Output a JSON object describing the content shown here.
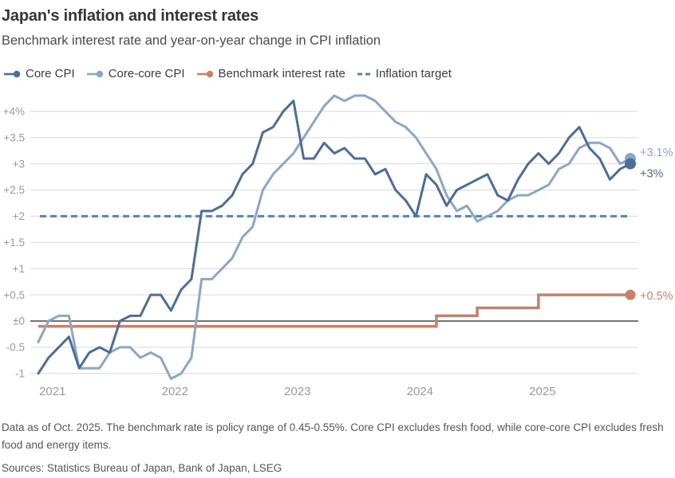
{
  "header": {
    "title": "Japan's inflation and interest rates",
    "subtitle": "Benchmark interest rate and year-on-year change in CPI inflation"
  },
  "legend": [
    {
      "id": "core",
      "label": "Core CPI",
      "marker": "line-dot"
    },
    {
      "id": "corecore",
      "label": "Core-core CPI",
      "marker": "line-dot"
    },
    {
      "id": "benchmark",
      "label": "Benchmark interest rate",
      "marker": "line-dot"
    },
    {
      "id": "target",
      "label": "Inflation target",
      "marker": "dashed"
    }
  ],
  "colors": {
    "core": "#4b6d9b",
    "corecore": "#8aa6c8",
    "benchmark": "#c8806b",
    "target": "#5b82b4",
    "grid": "#d9d9d9",
    "zero_line": "#5f5f5f",
    "axis_text": "#9a9a9a",
    "title_text": "#363636",
    "subtitle_text": "#4b4b4b",
    "legend_text": "#3c3c3c",
    "note_text": "#565656",
    "background": "#ffffff"
  },
  "chart_data": {
    "type": "line",
    "frequency": "monthly",
    "x_start": "2020-12",
    "x_end": "2025-10",
    "ylim": [
      -1.1,
      4.35
    ],
    "grid": "horizontal",
    "legend_position": "top",
    "unit": "%",
    "y_ticks": [
      {
        "label": "+4%",
        "value": 4
      },
      {
        "label": "+3.5",
        "value": 3.5
      },
      {
        "label": "+3",
        "value": 3
      },
      {
        "label": "+2.5",
        "value": 2.5
      },
      {
        "label": "+2",
        "value": 2
      },
      {
        "label": "+1.5",
        "value": 1.5
      },
      {
        "label": "+1",
        "value": 1
      },
      {
        "label": "+0.5",
        "value": 0.5
      },
      {
        "label": "±0",
        "value": 0
      },
      {
        "label": "-0.5",
        "value": -0.5
      },
      {
        "label": "-1",
        "value": -1
      }
    ],
    "x_ticks": [
      {
        "label": "2021",
        "month_index": 1
      },
      {
        "label": "2022",
        "month_index": 13
      },
      {
        "label": "2023",
        "month_index": 25
      },
      {
        "label": "2024",
        "month_index": 37
      },
      {
        "label": "2025",
        "month_index": 49
      }
    ],
    "series": [
      {
        "id": "core",
        "name": "Core CPI",
        "style": "line",
        "end_label": "+3%",
        "end_value": 3.0,
        "values": [
          -1.0,
          -0.7,
          -0.5,
          -0.3,
          -0.9,
          -0.6,
          -0.5,
          -0.6,
          0.0,
          0.1,
          0.1,
          0.5,
          0.5,
          0.2,
          0.6,
          0.8,
          2.1,
          2.1,
          2.2,
          2.4,
          2.8,
          3.0,
          3.6,
          3.7,
          4.0,
          4.2,
          3.1,
          3.1,
          3.4,
          3.2,
          3.3,
          3.1,
          3.1,
          2.8,
          2.9,
          2.5,
          2.3,
          2.0,
          2.8,
          2.6,
          2.2,
          2.5,
          2.6,
          2.7,
          2.8,
          2.4,
          2.3,
          2.7,
          3.0,
          3.2,
          3.0,
          3.2,
          3.5,
          3.7,
          3.3,
          3.1,
          2.7,
          2.9,
          3.0
        ]
      },
      {
        "id": "corecore",
        "name": "Core-core CPI",
        "style": "line",
        "end_label": "+3.1%",
        "end_value": 3.1,
        "values": [
          -0.4,
          0.0,
          0.1,
          0.1,
          -0.9,
          -0.9,
          -0.9,
          -0.6,
          -0.5,
          -0.5,
          -0.7,
          -0.6,
          -0.7,
          -1.1,
          -1.0,
          -0.7,
          0.8,
          0.8,
          1.0,
          1.2,
          1.6,
          1.8,
          2.5,
          2.8,
          3.0,
          3.2,
          3.5,
          3.8,
          4.1,
          4.3,
          4.2,
          4.3,
          4.3,
          4.2,
          4.0,
          3.8,
          3.7,
          3.5,
          3.2,
          2.9,
          2.4,
          2.1,
          2.2,
          1.9,
          2.0,
          2.1,
          2.3,
          2.4,
          2.4,
          2.5,
          2.6,
          2.9,
          3.0,
          3.3,
          3.4,
          3.4,
          3.3,
          3.0,
          3.1
        ]
      },
      {
        "id": "benchmark",
        "name": "Benchmark interest rate",
        "style": "step",
        "end_label": "+0.5%",
        "end_value": 0.5,
        "values": [
          -0.1,
          -0.1,
          -0.1,
          -0.1,
          -0.1,
          -0.1,
          -0.1,
          -0.1,
          -0.1,
          -0.1,
          -0.1,
          -0.1,
          -0.1,
          -0.1,
          -0.1,
          -0.1,
          -0.1,
          -0.1,
          -0.1,
          -0.1,
          -0.1,
          -0.1,
          -0.1,
          -0.1,
          -0.1,
          -0.1,
          -0.1,
          -0.1,
          -0.1,
          -0.1,
          -0.1,
          -0.1,
          -0.1,
          -0.1,
          -0.1,
          -0.1,
          -0.1,
          -0.1,
          -0.1,
          0.1,
          0.1,
          0.1,
          0.1,
          0.25,
          0.25,
          0.25,
          0.25,
          0.25,
          0.25,
          0.5,
          0.5,
          0.5,
          0.5,
          0.5,
          0.5,
          0.5,
          0.5,
          0.5,
          0.5
        ]
      },
      {
        "id": "target",
        "name": "Inflation target",
        "style": "dashed-horizontal",
        "value": 2.0
      }
    ]
  },
  "footer": {
    "note": "Data as of Oct. 2025. The benchmark rate is policy range of 0.45-0.55%. Core CPI excludes fresh food, while core-core CPI excludes fresh food and energy items.",
    "sources": "Sources: Statistics Bureau of Japan, Bank of Japan, LSEG"
  }
}
